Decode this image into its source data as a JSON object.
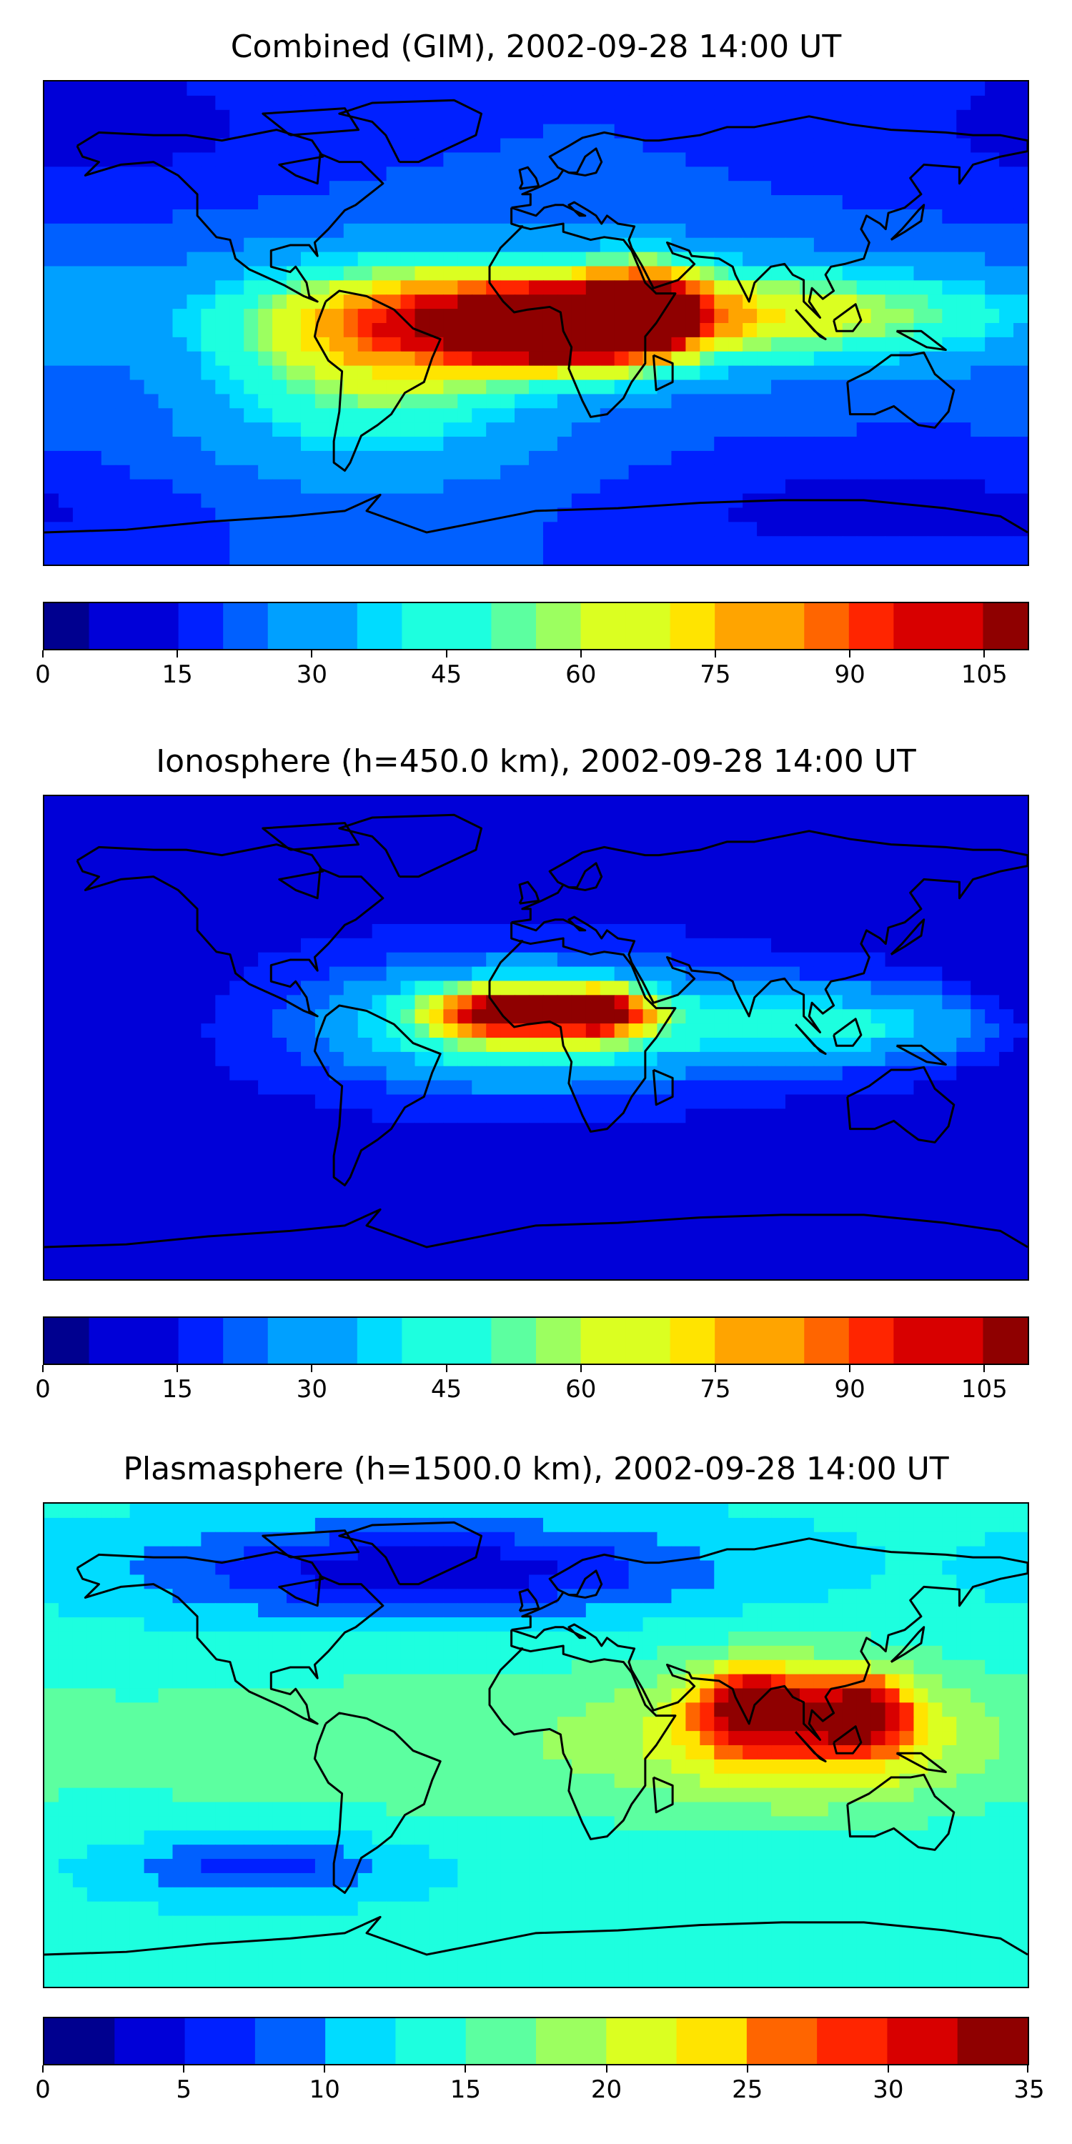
{
  "panels": [
    {
      "title": "Combined (GIM), 2002-09-28 14:00 UT",
      "colorbar": {
        "min": 0,
        "max": 110,
        "step": 5,
        "ticks": [
          0,
          15,
          30,
          45,
          60,
          75,
          90,
          105
        ]
      },
      "field": {
        "background_value": 20,
        "features": [
          {
            "lon": -20,
            "lat": 3,
            "value": 85,
            "spread_lon": 55,
            "spread_lat": 14
          },
          {
            "lon": 8,
            "lat": -3,
            "value": 92,
            "spread_lon": 24,
            "spread_lat": 10
          },
          {
            "lon": 40,
            "lat": 5,
            "value": 80,
            "spread_lon": 16,
            "spread_lat": 12
          },
          {
            "lon": 100,
            "lat": 3,
            "value": 62,
            "spread_lon": 55,
            "spread_lat": 12
          },
          {
            "lon": -60,
            "lat": -20,
            "value": 55,
            "spread_lon": 40,
            "spread_lat": 22
          },
          {
            "lon": -160,
            "lat": 75,
            "value": 10,
            "spread_lon": 40,
            "spread_lat": 15
          },
          {
            "lon": 130,
            "lat": -70,
            "value": 10,
            "spread_lon": 50,
            "spread_lat": 10
          }
        ]
      }
    },
    {
      "title": "Ionosphere  (h=450.0 km), 2002-09-28 14:00 UT",
      "colorbar": {
        "min": 0,
        "max": 110,
        "step": 5,
        "ticks": [
          0,
          15,
          30,
          45,
          60,
          75,
          90,
          105
        ]
      },
      "field": {
        "background_value": 14,
        "features": [
          {
            "lon": -5,
            "lat": 5,
            "value": 62,
            "spread_lon": 45,
            "spread_lat": 14
          },
          {
            "lon": -10,
            "lat": 10,
            "value": 82,
            "spread_lon": 18,
            "spread_lat": 6
          },
          {
            "lon": 25,
            "lat": 10,
            "value": 82,
            "spread_lon": 12,
            "spread_lat": 6
          },
          {
            "lon": 110,
            "lat": 5,
            "value": 42,
            "spread_lon": 45,
            "spread_lat": 10
          },
          {
            "lon": -170,
            "lat": 15,
            "value": 4,
            "spread_lon": 25,
            "spread_lat": 25
          },
          {
            "lon": -130,
            "lat": -45,
            "value": 6,
            "spread_lon": 30,
            "spread_lat": 10
          }
        ]
      }
    },
    {
      "title": "Plasmasphere (h=1500.0 km), 2002-09-28 14:00 UT",
      "colorbar": {
        "min": 0,
        "max": 35,
        "step": 2.5,
        "ticks": [
          0,
          5,
          10,
          15,
          20,
          25,
          30,
          35
        ]
      },
      "field": {
        "background_value": 13,
        "features": [
          {
            "lon": 0,
            "lat": 0,
            "value": 17,
            "spread_lon": 160,
            "spread_lat": 22
          },
          {
            "lon": 80,
            "lat": 15,
            "value": 28,
            "spread_lon": 14,
            "spread_lat": 10
          },
          {
            "lon": 120,
            "lat": 12,
            "value": 28,
            "spread_lon": 12,
            "spread_lat": 9
          },
          {
            "lon": 100,
            "lat": 5,
            "value": 23,
            "spread_lon": 40,
            "spread_lat": 18
          },
          {
            "lon": -40,
            "lat": 65,
            "value": 3,
            "spread_lon": 70,
            "spread_lat": 12
          },
          {
            "lon": -100,
            "lat": -45,
            "value": 6,
            "spread_lon": 35,
            "spread_lat": 8
          }
        ]
      }
    }
  ],
  "colormap": [
    "#00008f",
    "#0000d8",
    "#0020ff",
    "#0060ff",
    "#00a0ff",
    "#00dcff",
    "#1dffdf",
    "#5cffa0",
    "#9cff60",
    "#dbff21",
    "#ffe400",
    "#ffa400",
    "#ff6500",
    "#ff2500",
    "#d80000",
    "#8f0000"
  ]
}
